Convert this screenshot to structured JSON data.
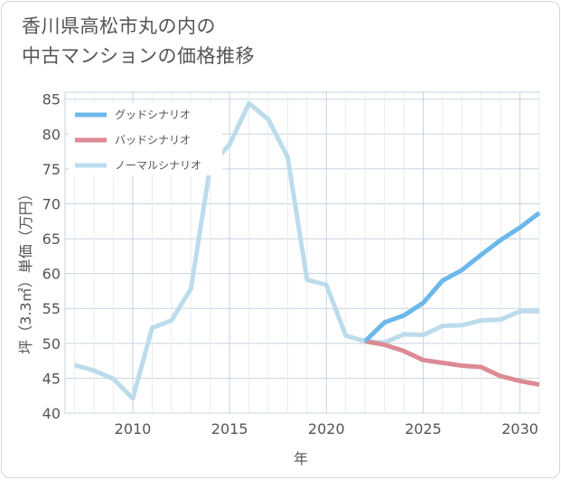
{
  "title": {
    "line1": "香川県高松市丸の内の",
    "line2": "中古マンションの価格推移"
  },
  "chart_data": {
    "type": "line",
    "xlabel": "年",
    "ylabel": "坪（3.3㎡）単価（万円）",
    "xlim": [
      2006.5,
      2031
    ],
    "ylim": [
      40,
      86
    ],
    "xticks": [
      2010,
      2015,
      2020,
      2025,
      2030
    ],
    "yticks": [
      40,
      45,
      50,
      55,
      60,
      65,
      70,
      75,
      80,
      85
    ],
    "grid": true,
    "legend_position": "top-left",
    "series": [
      {
        "name": "グッドシナリオ",
        "color": "#6cb8ea",
        "x": [
          2022,
          2023,
          2024,
          2025,
          2026,
          2027,
          2028,
          2029,
          2030,
          2031
        ],
        "y": [
          50.3,
          53.0,
          54.0,
          55.8,
          59.0,
          60.5,
          62.7,
          64.8,
          66.6,
          68.7
        ]
      },
      {
        "name": "バッドシナリオ",
        "color": "#dc8a94",
        "x": [
          2022,
          2023,
          2024,
          2025,
          2026,
          2027,
          2028,
          2029,
          2030,
          2031
        ],
        "y": [
          50.3,
          49.8,
          48.9,
          47.6,
          47.2,
          46.8,
          46.6,
          45.3,
          44.6,
          44.1
        ]
      },
      {
        "name": "ノーマルシナリオ",
        "color": "#bcdcec",
        "x": [
          2007,
          2008,
          2009,
          2010,
          2011,
          2012,
          2013,
          2014,
          2015,
          2016,
          2017,
          2018,
          2019,
          2020,
          2021,
          2022,
          2023,
          2024,
          2025,
          2026,
          2027,
          2028,
          2029,
          2030,
          2031
        ],
        "y": [
          46.9,
          46.1,
          44.9,
          42.1,
          52.2,
          53.3,
          57.8,
          75.4,
          78.5,
          84.4,
          82.1,
          76.7,
          59.1,
          58.4,
          51.1,
          50.3,
          50.1,
          51.3,
          51.2,
          52.5,
          52.6,
          53.3,
          53.4,
          54.6,
          54.6
        ]
      }
    ]
  }
}
